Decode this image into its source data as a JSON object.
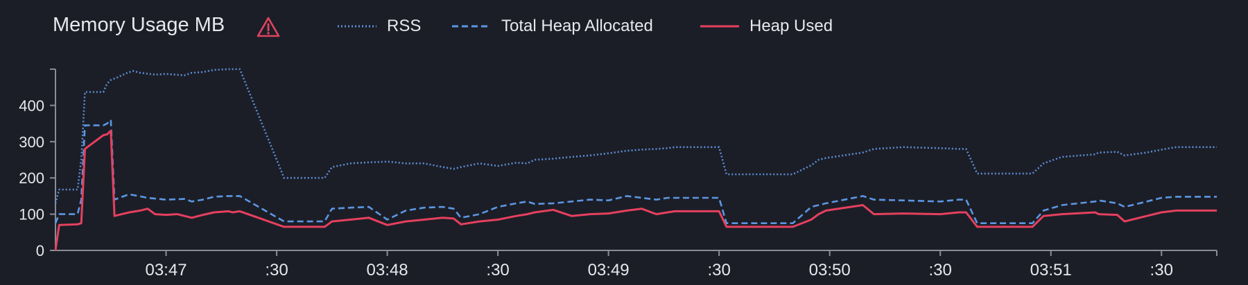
{
  "header": {
    "title": "Memory Usage MB",
    "warning_icon": "warning-triangle-icon",
    "warning_color": "#e0445f"
  },
  "legend": [
    {
      "name": "RSS",
      "style": "dotted",
      "color": "#5b8fd6"
    },
    {
      "name": "Total Heap Allocated",
      "style": "dashed",
      "color": "#5b97e3"
    },
    {
      "name": "Heap Used",
      "style": "solid",
      "color": "#e6405f"
    }
  ],
  "chart_data": {
    "type": "line",
    "title": "Memory Usage MB",
    "xlabel": "",
    "ylabel": "",
    "x_unit": "seconds after 03:46:30",
    "xlim": [
      0,
      315
    ],
    "ylim": [
      0,
      500
    ],
    "y_ticks": [
      0,
      100,
      200,
      300,
      400
    ],
    "x_ticks": [
      {
        "x": 30,
        "label": "03:47"
      },
      {
        "x": 60,
        "label": ":30"
      },
      {
        "x": 90,
        "label": "03:48"
      },
      {
        "x": 120,
        "label": ":30"
      },
      {
        "x": 150,
        "label": "03:49"
      },
      {
        "x": 180,
        "label": ":30"
      },
      {
        "x": 210,
        "label": "03:50"
      },
      {
        "x": 240,
        "label": ":30"
      },
      {
        "x": 270,
        "label": "03:51"
      },
      {
        "x": 300,
        "label": ":30"
      }
    ],
    "grid": false,
    "legend_position": "top",
    "colors": {
      "background": "#1c1e27",
      "axis": "#8a8d98",
      "tick_label": "#e6e8ee"
    },
    "series": [
      {
        "name": "RSS",
        "line_style": "dotted",
        "color": "#5b8fd6",
        "x": [
          0,
          1,
          6,
          7,
          8,
          13,
          14,
          15,
          17,
          19,
          21,
          23,
          27,
          30,
          35,
          37,
          40,
          43,
          47,
          48,
          50,
          62,
          63,
          65,
          70,
          73,
          75,
          80,
          85,
          90,
          95,
          100,
          105,
          108,
          110,
          115,
          120,
          125,
          128,
          130,
          135,
          140,
          145,
          150,
          155,
          159,
          163,
          166,
          168,
          180,
          182,
          185,
          190,
          196,
          200,
          205,
          207,
          209,
          219,
          222,
          230,
          240,
          245,
          247,
          250,
          255,
          260,
          262,
          265,
          268,
          273,
          282,
          283,
          288,
          290,
          296,
          300,
          304,
          309,
          315
        ],
        "y": [
          130,
          168,
          168,
          250,
          437,
          437,
          460,
          470,
          478,
          488,
          495,
          490,
          485,
          487,
          483,
          490,
          492,
          498,
          500,
          500,
          500,
          200,
          200,
          200,
          200,
          200,
          230,
          240,
          243,
          245,
          240,
          240,
          230,
          225,
          230,
          240,
          233,
          242,
          240,
          250,
          253,
          258,
          262,
          268,
          275,
          278,
          280,
          282,
          285,
          285,
          210,
          210,
          210,
          210,
          210,
          235,
          250,
          255,
          270,
          280,
          285,
          282,
          280,
          280,
          212,
          212,
          212,
          212,
          212,
          240,
          258,
          265,
          270,
          272,
          262,
          270,
          278,
          285,
          285,
          285
        ]
      },
      {
        "name": "Total Heap Allocated",
        "line_style": "dashed",
        "color": "#5b97e3",
        "x": [
          0,
          1,
          6,
          7,
          8,
          13,
          14,
          15,
          16,
          20,
          25,
          30,
          35,
          37,
          40,
          43,
          47,
          48,
          50,
          62,
          63,
          65,
          70,
          73,
          75,
          80,
          85,
          90,
          95,
          100,
          105,
          108,
          110,
          115,
          120,
          125,
          128,
          130,
          135,
          140,
          145,
          150,
          155,
          159,
          163,
          166,
          168,
          180,
          182,
          185,
          190,
          196,
          200,
          205,
          207,
          209,
          219,
          222,
          230,
          240,
          245,
          247,
          250,
          255,
          260,
          262,
          265,
          268,
          273,
          282,
          283,
          288,
          290,
          296,
          300,
          304,
          309,
          315
        ],
        "y": [
          75,
          100,
          100,
          140,
          345,
          345,
          350,
          360,
          140,
          155,
          145,
          140,
          142,
          135,
          140,
          148,
          150,
          150,
          150,
          80,
          80,
          80,
          80,
          80,
          115,
          118,
          120,
          85,
          110,
          118,
          120,
          115,
          90,
          100,
          120,
          130,
          135,
          128,
          130,
          135,
          140,
          138,
          150,
          145,
          140,
          145,
          145,
          145,
          75,
          75,
          75,
          75,
          75,
          120,
          125,
          130,
          150,
          140,
          138,
          135,
          140,
          140,
          75,
          75,
          75,
          75,
          75,
          110,
          125,
          135,
          138,
          130,
          120,
          135,
          145,
          148,
          148,
          148
        ]
      },
      {
        "name": "Heap Used",
        "line_style": "solid",
        "color": "#e6405f",
        "x": [
          0,
          1,
          6,
          7,
          8,
          13,
          14,
          15,
          16,
          18,
          20,
          23,
          25,
          27,
          30,
          33,
          35,
          37,
          40,
          43,
          47,
          48,
          50,
          62,
          63,
          65,
          70,
          73,
          75,
          80,
          85,
          90,
          95,
          100,
          105,
          108,
          110,
          115,
          120,
          125,
          128,
          130,
          135,
          140,
          145,
          150,
          155,
          159,
          163,
          166,
          168,
          180,
          182,
          185,
          190,
          196,
          200,
          205,
          207,
          209,
          219,
          222,
          230,
          240,
          245,
          247,
          250,
          255,
          260,
          262,
          265,
          268,
          273,
          282,
          283,
          288,
          290,
          296,
          300,
          304,
          309,
          315
        ],
        "y": [
          0,
          70,
          72,
          75,
          280,
          318,
          320,
          330,
          95,
          100,
          105,
          110,
          115,
          100,
          98,
          100,
          95,
          90,
          98,
          105,
          108,
          105,
          108,
          65,
          65,
          65,
          65,
          65,
          80,
          85,
          90,
          70,
          80,
          85,
          90,
          88,
          72,
          80,
          85,
          95,
          100,
          105,
          112,
          95,
          100,
          102,
          110,
          115,
          100,
          105,
          108,
          108,
          65,
          65,
          65,
          65,
          65,
          85,
          100,
          110,
          125,
          100,
          102,
          100,
          105,
          105,
          65,
          65,
          65,
          65,
          65,
          95,
          100,
          105,
          100,
          98,
          80,
          95,
          105,
          110,
          110,
          110
        ]
      }
    ]
  }
}
